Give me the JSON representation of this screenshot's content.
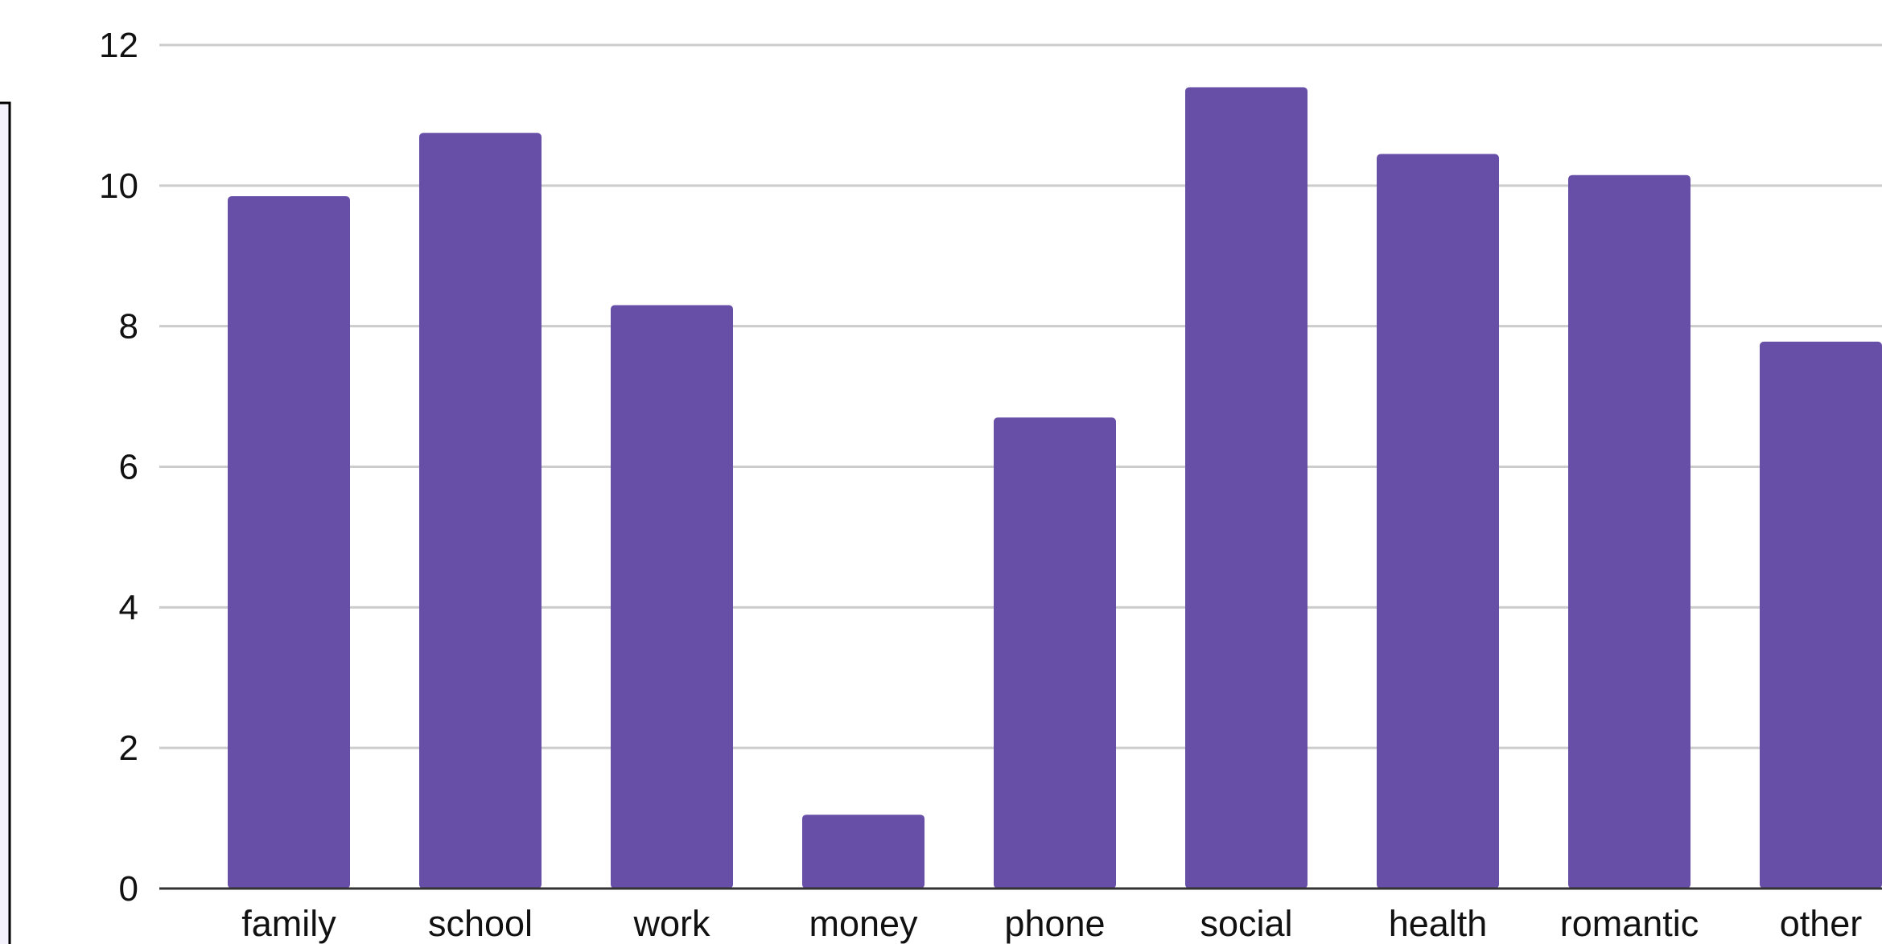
{
  "chart_data": {
    "type": "bar",
    "categories": [
      "family",
      "school",
      "work",
      "money",
      "phone",
      "social",
      "health",
      "romantic",
      "other"
    ],
    "values": [
      9.85,
      10.75,
      8.3,
      1.05,
      6.7,
      11.4,
      10.45,
      10.15,
      7.78
    ],
    "ylim": [
      0,
      12
    ],
    "yticks": [
      0,
      2,
      4,
      6,
      8,
      10,
      12
    ],
    "grid": true,
    "legend": "none",
    "colors": {
      "bar": "#674ea7",
      "grid": "#cccccc",
      "axis": "#333333",
      "left_panel_border": "#000000",
      "left_panel_fill": "#f3f1fb"
    }
  }
}
